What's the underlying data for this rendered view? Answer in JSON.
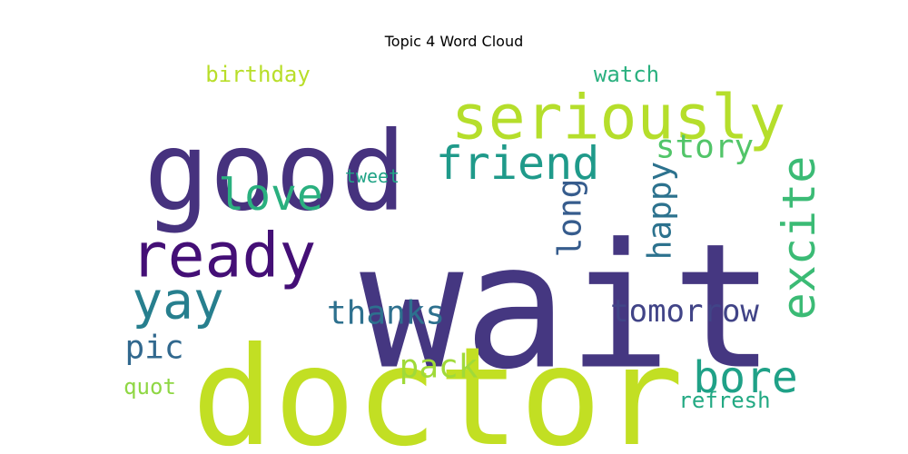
{
  "chart_data": {
    "type": "wordcloud",
    "title": "Topic 4 Word Cloud",
    "words": [
      {
        "text": "wait",
        "weight": 1.0,
        "color": "#453781"
      },
      {
        "text": "doctor",
        "weight": 0.95,
        "color": "#c2df23"
      },
      {
        "text": "good",
        "weight": 0.8,
        "color": "#46327e"
      },
      {
        "text": "seriously",
        "weight": 0.55,
        "color": "#b5de2b"
      },
      {
        "text": "ready",
        "weight": 0.48,
        "color": "#440f76"
      },
      {
        "text": "friend",
        "weight": 0.38,
        "color": "#1f9a8a"
      },
      {
        "text": "excite",
        "weight": 0.35,
        "color": "#3bbb75"
      },
      {
        "text": "love",
        "weight": 0.33,
        "color": "#2ab07f"
      },
      {
        "text": "yay",
        "weight": 0.33,
        "color": "#277f8e"
      },
      {
        "text": "bore",
        "weight": 0.32,
        "color": "#1fa187"
      },
      {
        "text": "tomorrow",
        "weight": 0.26,
        "color": "#414487"
      },
      {
        "text": "thanks",
        "weight": 0.26,
        "color": "#2d708e"
      },
      {
        "text": "pack",
        "weight": 0.26,
        "color": "#a0da39"
      },
      {
        "text": "story",
        "weight": 0.25,
        "color": "#52c569"
      },
      {
        "text": "long",
        "weight": 0.25,
        "color": "#365c8d"
      },
      {
        "text": "happy",
        "weight": 0.25,
        "color": "#2c728e"
      },
      {
        "text": "pic",
        "weight": 0.24,
        "color": "#31688e"
      },
      {
        "text": "refresh",
        "weight": 0.17,
        "color": "#23a983"
      },
      {
        "text": "birthday",
        "weight": 0.17,
        "color": "#b8de29"
      },
      {
        "text": "watch",
        "weight": 0.17,
        "color": "#2ab07f"
      },
      {
        "text": "quot",
        "weight": 0.17,
        "color": "#8fd744"
      },
      {
        "text": "tweet",
        "weight": 0.15,
        "color": "#20a386"
      }
    ]
  }
}
